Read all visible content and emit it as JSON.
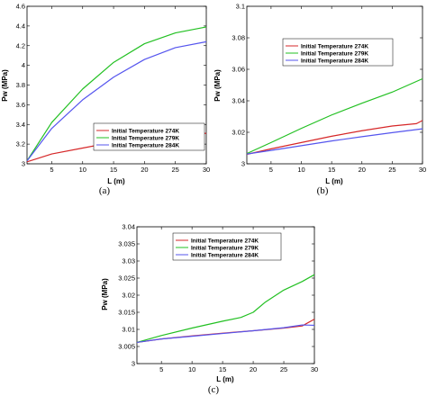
{
  "chart_data": [
    {
      "panel_label": "(a)",
      "type": "line",
      "xlabel": "L (m)",
      "ylabel": "Pw (MPa)",
      "xlim": [
        1,
        30
      ],
      "ylim": [
        3,
        4.6
      ],
      "xticks": [
        5,
        10,
        15,
        20,
        25,
        30
      ],
      "xtick_labels": [
        "5",
        "10",
        "15",
        "20",
        "25",
        "30"
      ],
      "yticks": [
        3,
        3.2,
        3.4,
        3.6,
        3.8,
        4,
        4.2,
        4.4,
        4.6
      ],
      "ytick_labels": [
        "3",
        "3.2",
        "3.4",
        "3.6",
        "3.8",
        "4",
        "4.2",
        "4.4",
        "4.6"
      ],
      "legend_position": "bottom-right",
      "grid": false,
      "series": [
        {
          "name": "Initial Temperature 274K",
          "color": "#d62728",
          "x": [
            1,
            5,
            10,
            15,
            20,
            25,
            30
          ],
          "y": [
            3.02,
            3.1,
            3.16,
            3.22,
            3.27,
            3.3,
            3.31
          ]
        },
        {
          "name": "Initial Temperature 279K",
          "color": "#22c022",
          "x": [
            1,
            5,
            10,
            15,
            20,
            25,
            30
          ],
          "y": [
            3.03,
            3.42,
            3.76,
            4.03,
            4.22,
            4.33,
            4.39
          ]
        },
        {
          "name": "Initial Temperature 284K",
          "color": "#5555ee",
          "x": [
            1,
            5,
            10,
            15,
            20,
            25,
            30
          ],
          "y": [
            3.03,
            3.36,
            3.65,
            3.88,
            4.06,
            4.18,
            4.24
          ]
        }
      ]
    },
    {
      "panel_label": "(b)",
      "type": "line",
      "xlabel": "L (m)",
      "ylabel": "Pw (MPa)",
      "xlim": [
        1,
        30
      ],
      "ylim": [
        3,
        3.1
      ],
      "xticks": [
        5,
        10,
        15,
        20,
        25,
        30
      ],
      "xtick_labels": [
        "5",
        "10",
        "15",
        "20",
        "25",
        "30"
      ],
      "yticks": [
        3,
        3.02,
        3.04,
        3.06,
        3.08,
        3.1
      ],
      "ytick_labels": [
        "3",
        "3.02",
        "3.04",
        "3.06",
        "3.08",
        "3.1"
      ],
      "legend_position": "top-center",
      "grid": false,
      "series": [
        {
          "name": "Initial Temperature 274K",
          "color": "#d62728",
          "x": [
            1,
            5,
            10,
            15,
            20,
            25,
            29,
            30
          ],
          "y": [
            3.006,
            3.0095,
            3.0135,
            3.0175,
            3.021,
            3.024,
            3.0255,
            3.0275
          ]
        },
        {
          "name": "Initial Temperature 279K",
          "color": "#22c022",
          "x": [
            1,
            5,
            10,
            15,
            20,
            25,
            30
          ],
          "y": [
            3.0065,
            3.0135,
            3.0225,
            3.031,
            3.0385,
            3.0455,
            3.054
          ]
        },
        {
          "name": "Initial Temperature 284K",
          "color": "#5555ee",
          "x": [
            1,
            5,
            10,
            15,
            20,
            25,
            30
          ],
          "y": [
            3.0062,
            3.0085,
            3.0115,
            3.0145,
            3.0172,
            3.0198,
            3.0222
          ]
        }
      ]
    },
    {
      "panel_label": "(c)",
      "type": "line",
      "xlabel": "L (m)",
      "ylabel": "Pw (MPa)",
      "xlim": [
        1,
        30
      ],
      "ylim": [
        3,
        3.04
      ],
      "xticks": [
        5,
        10,
        15,
        20,
        25,
        30
      ],
      "xtick_labels": [
        "5",
        "10",
        "15",
        "20",
        "25",
        "30"
      ],
      "yticks": [
        3,
        3.005,
        3.01,
        3.015,
        3.02,
        3.025,
        3.03,
        3.035,
        3.04
      ],
      "ytick_labels": [
        "3",
        "3.005",
        "3.01",
        "3.015",
        "3.02",
        "3.025",
        "3.03",
        "3.035",
        "3.04"
      ],
      "legend_position": "top-center",
      "grid": false,
      "series": [
        {
          "name": "Initial Temperature 274K",
          "color": "#d62728",
          "x": [
            1,
            5,
            10,
            15,
            20,
            25,
            28,
            30
          ],
          "y": [
            3.0062,
            3.0072,
            3.0081,
            3.0089,
            3.0096,
            3.0104,
            3.011,
            3.013
          ]
        },
        {
          "name": "Initial Temperature 279K",
          "color": "#22c022",
          "x": [
            1,
            5,
            10,
            15,
            18,
            20,
            22,
            25,
            28,
            30
          ],
          "y": [
            3.0062,
            3.0082,
            3.0104,
            3.0124,
            3.0135,
            3.015,
            3.018,
            3.0215,
            3.024,
            3.026
          ]
        },
        {
          "name": "Initial Temperature 284K",
          "color": "#5555ee",
          "x": [
            1,
            5,
            10,
            15,
            20,
            25,
            28,
            30
          ],
          "y": [
            3.0062,
            3.0072,
            3.008,
            3.0088,
            3.0096,
            3.0105,
            3.0113,
            3.0112
          ]
        }
      ]
    }
  ]
}
